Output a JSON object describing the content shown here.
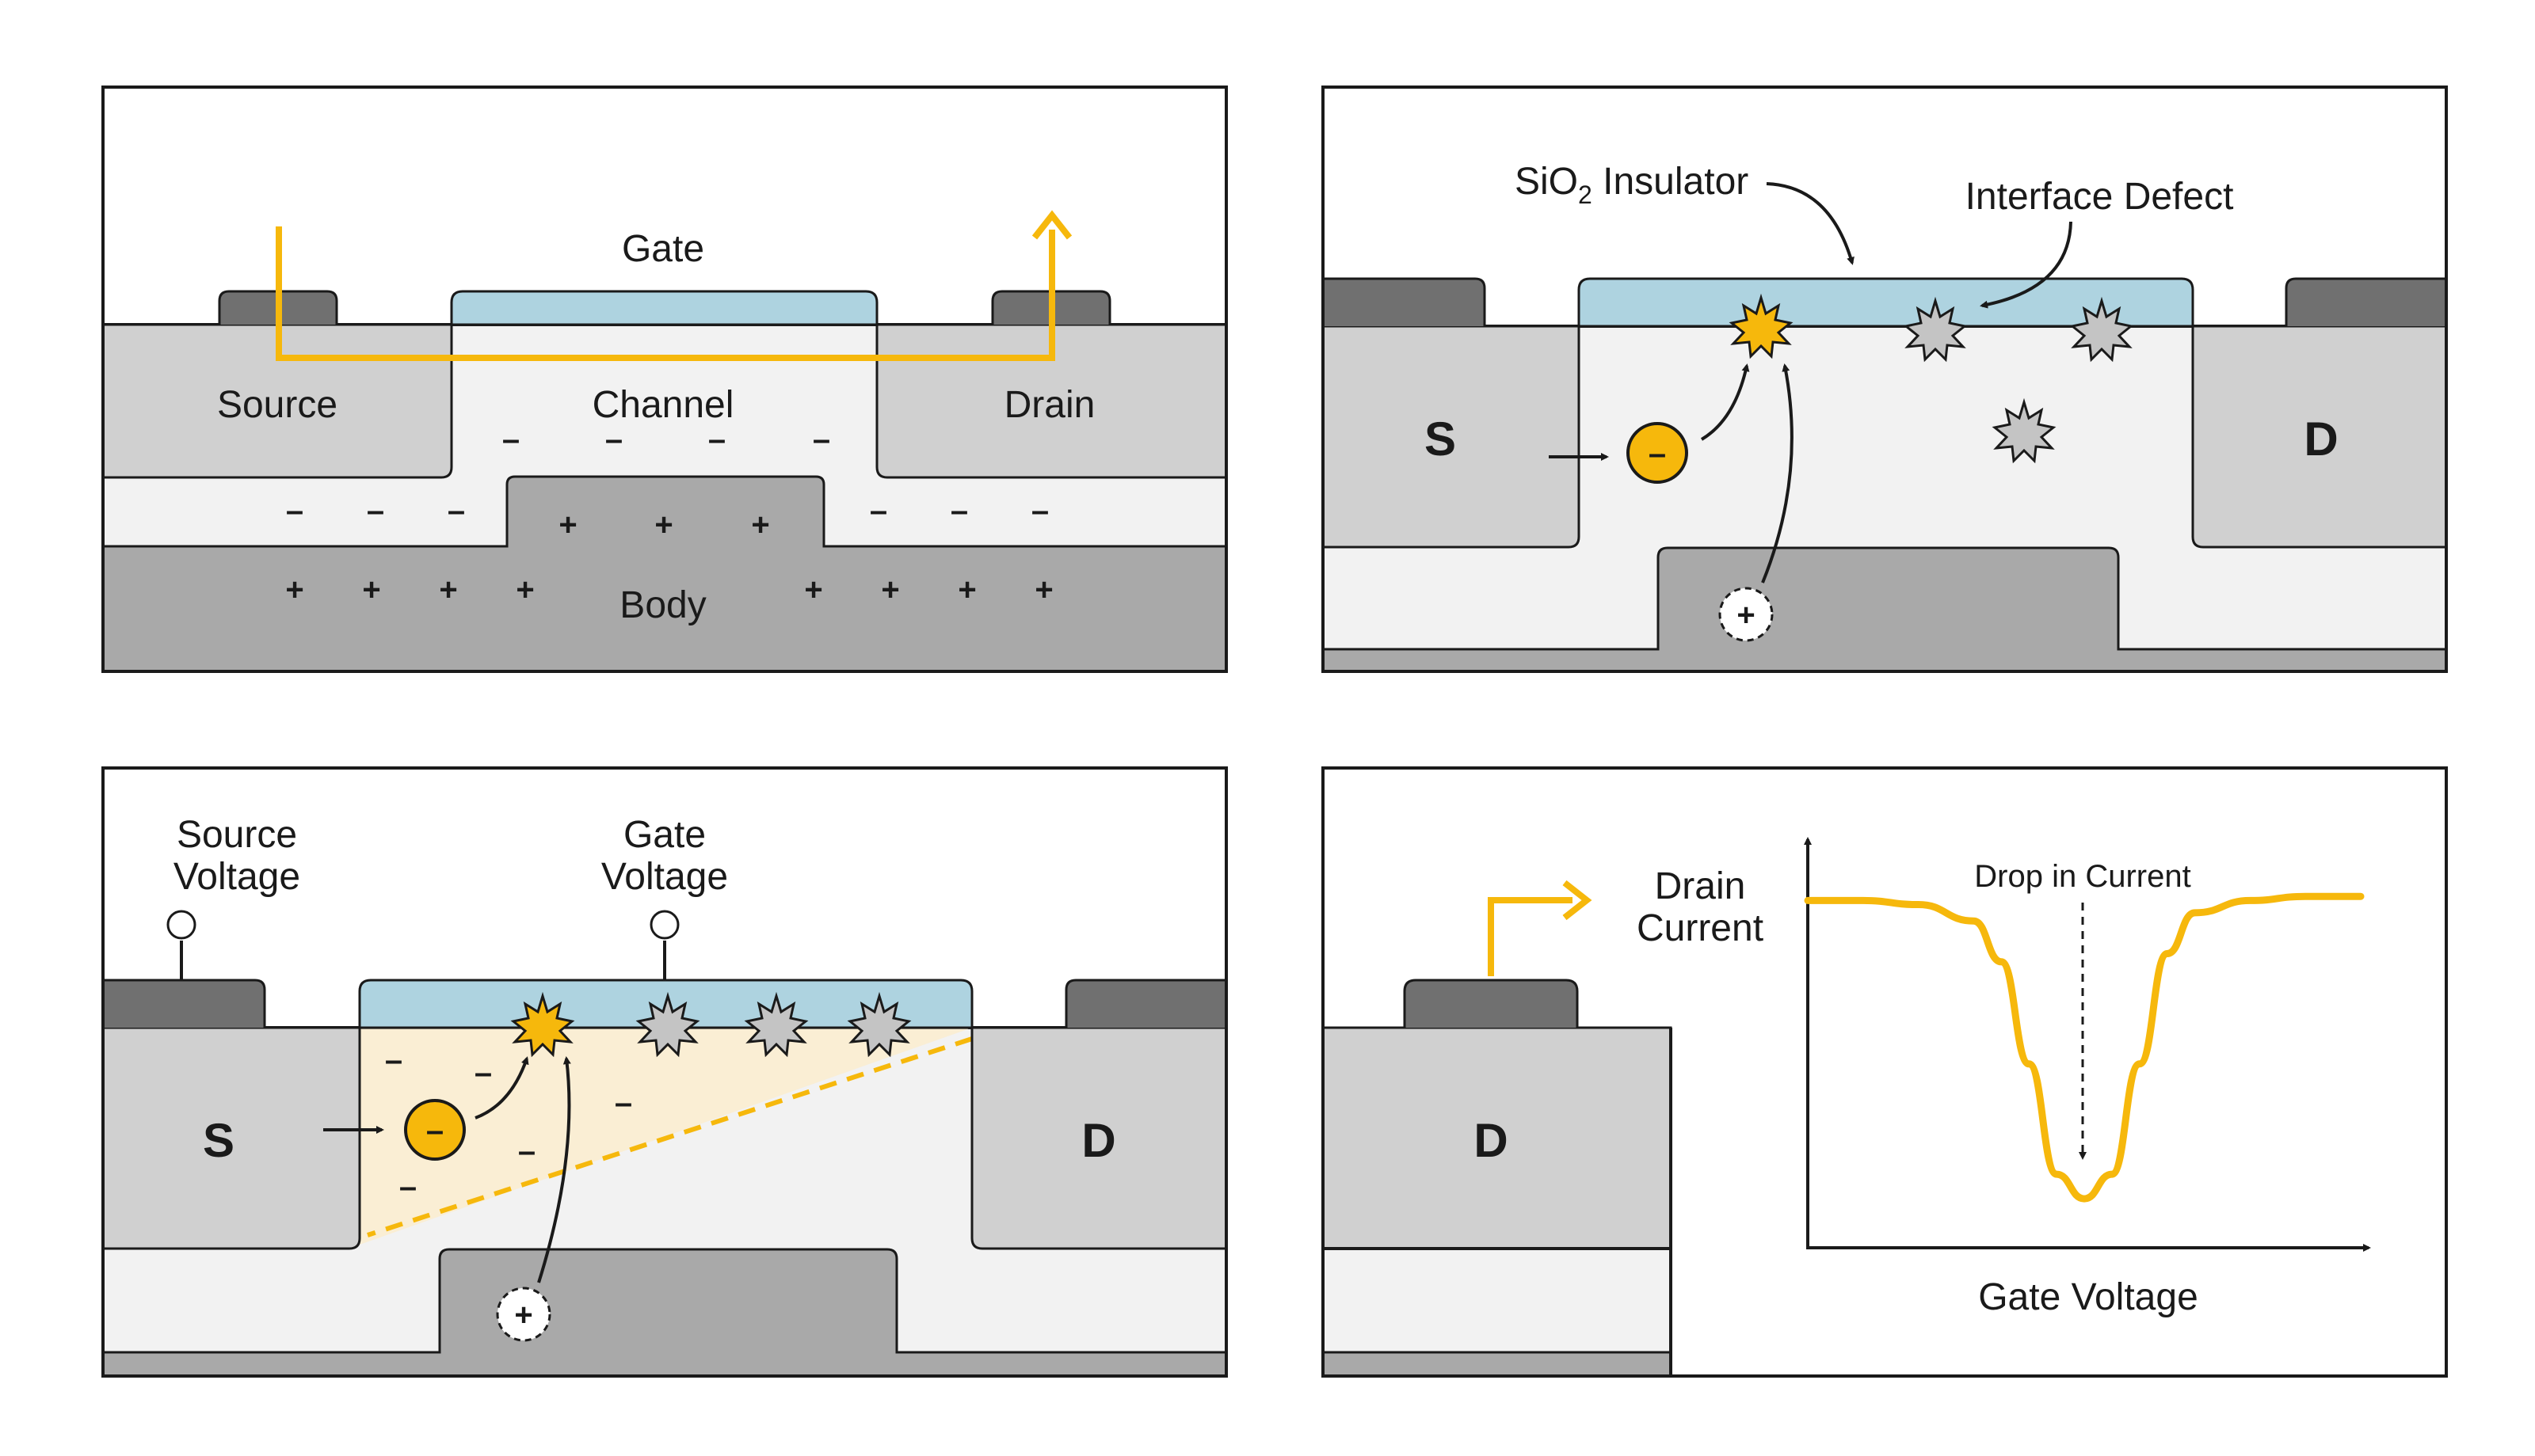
{
  "colors": {
    "accent_yellow": "#f6b80c",
    "oxide_blue": "#aed3e0",
    "defect_gray": "#c4c4c4",
    "contact_gray": "#707070",
    "body_gray": "#a9a9a9",
    "source_drain_gray": "#d0d0d0"
  },
  "panel1": {
    "gate": "Gate",
    "source": "Source",
    "channel": "Channel",
    "drain": "Drain",
    "body": "Body",
    "minus": "–",
    "plus": "+"
  },
  "panel2": {
    "sio2_main": "SiO",
    "sio2_sub": "2",
    "sio2_rest": " Insulator",
    "interface_defect": "Interface Defect",
    "s": "S",
    "d": "D",
    "electron": "–",
    "hole": "+"
  },
  "panel3": {
    "source_voltage_line1": "Source",
    "source_voltage_line2": "Voltage",
    "gate_voltage_line1": "Gate",
    "gate_voltage_line2": "Voltage",
    "s": "S",
    "d": "D",
    "electron": "–",
    "hole": "+",
    "minus": "–"
  },
  "panel4": {
    "d": "D",
    "drain_current_line1": "Drain",
    "drain_current_line2": "Current",
    "drop_label": "Drop in Current",
    "x_axis_label": "Gate Voltage",
    "chart_data": {
      "type": "line",
      "xlabel": "Gate Voltage",
      "ylabel": "Drain Current",
      "series": [
        {
          "x": [
            0.0,
            0.1,
            0.2,
            0.3,
            0.35,
            0.4,
            0.45,
            0.5,
            0.55,
            0.6,
            0.65,
            0.7,
            0.8,
            0.9,
            1.0
          ],
          "y": [
            0.85,
            0.85,
            0.84,
            0.8,
            0.7,
            0.45,
            0.18,
            0.12,
            0.18,
            0.45,
            0.72,
            0.82,
            0.85,
            0.86,
            0.86
          ]
        }
      ],
      "annotations": [
        "Drop in Current"
      ]
    }
  }
}
